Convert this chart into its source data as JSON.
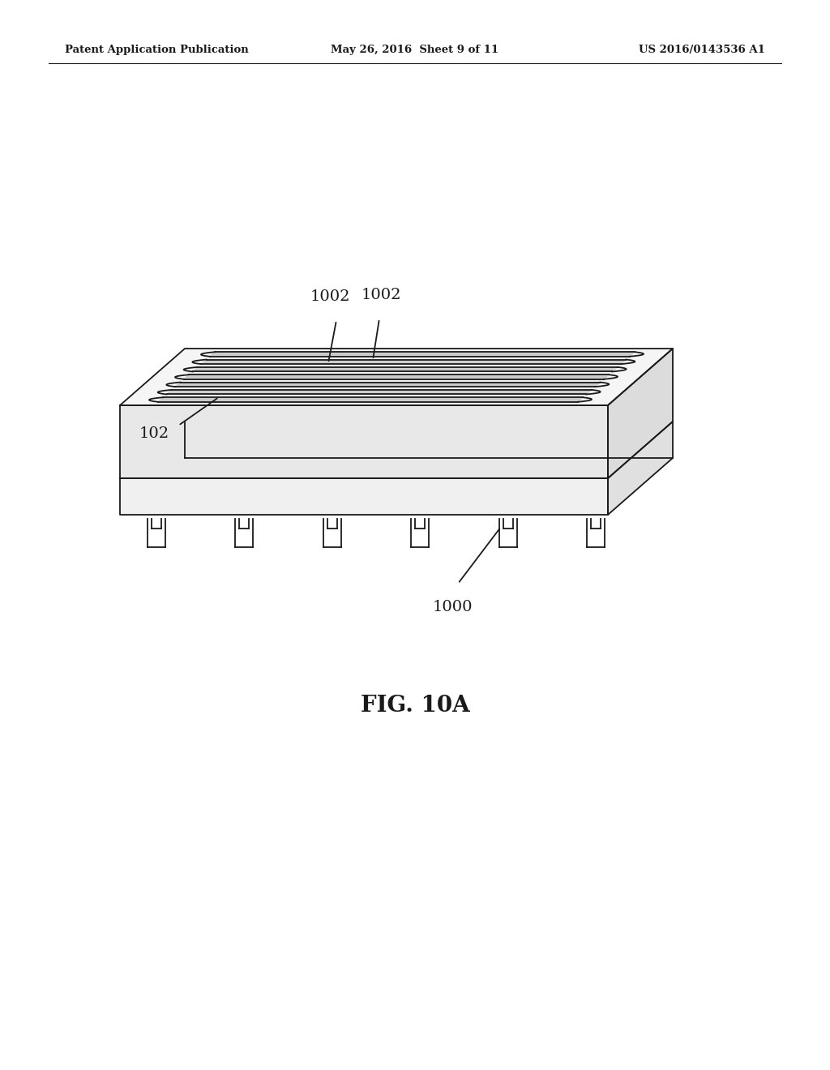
{
  "background_color": "#ffffff",
  "line_color": "#1a1a1a",
  "line_width": 1.3,
  "header": {
    "left": "Patent Application Publication",
    "center": "May 26, 2016  Sheet 9 of 11",
    "right": "US 2016/0143536 A1"
  },
  "figure_label": "FIG. 10A",
  "num_channels": 7,
  "num_legs": 6
}
